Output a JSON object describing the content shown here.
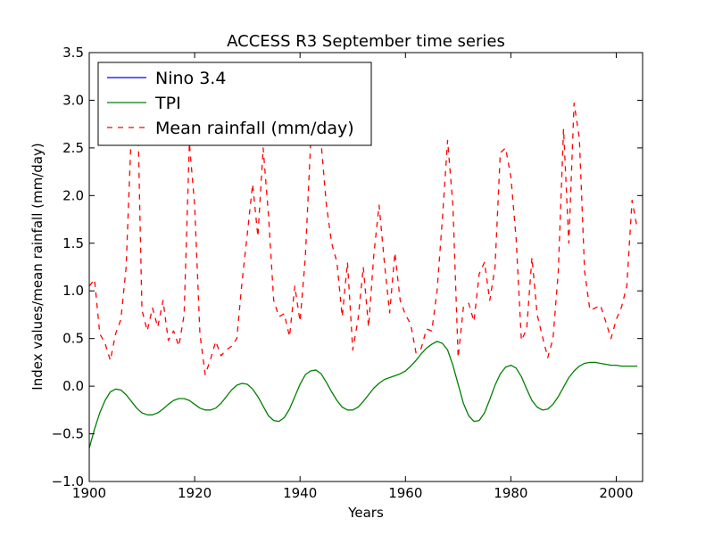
{
  "chart_data": {
    "type": "line",
    "title": "ACCESS R3 September time series",
    "xlabel": "Years",
    "ylabel": "Index values/mean rainfall (mm/day)",
    "xlim": [
      1900,
      2005
    ],
    "ylim": [
      -1.0,
      3.5
    ],
    "xticks": [
      1900,
      1920,
      1940,
      1960,
      1980,
      2000
    ],
    "xtick_labels": [
      "1900",
      "1920",
      "1940",
      "1960",
      "1980",
      "2000"
    ],
    "yticks": [
      -1.0,
      -0.5,
      0.0,
      0.5,
      1.0,
      1.5,
      2.0,
      2.5,
      3.0,
      3.5
    ],
    "ytick_labels": [
      "−1.0",
      "−0.5",
      "0.0",
      "0.5",
      "1.0",
      "1.5",
      "2.0",
      "2.5",
      "3.0",
      "3.5"
    ],
    "grid": false,
    "legend_position": "top-left",
    "series": [
      {
        "name": "Nino 3.4",
        "color": "#0000ff",
        "style": "solid",
        "x": [],
        "y": []
      },
      {
        "name": "TPI",
        "color": "#008000",
        "style": "solid",
        "x": [
          1900,
          1901,
          1902,
          1903,
          1904,
          1905,
          1906,
          1907,
          1908,
          1909,
          1910,
          1911,
          1912,
          1913,
          1914,
          1915,
          1916,
          1917,
          1918,
          1919,
          1920,
          1921,
          1922,
          1923,
          1924,
          1925,
          1926,
          1927,
          1928,
          1929,
          1930,
          1931,
          1932,
          1933,
          1934,
          1935,
          1936,
          1937,
          1938,
          1939,
          1940,
          1941,
          1942,
          1943,
          1944,
          1945,
          1946,
          1947,
          1948,
          1949,
          1950,
          1951,
          1952,
          1953,
          1954,
          1955,
          1956,
          1957,
          1958,
          1959,
          1960,
          1961,
          1962,
          1963,
          1964,
          1965,
          1966,
          1967,
          1968,
          1969,
          1970,
          1971,
          1972,
          1973,
          1974,
          1975,
          1976,
          1977,
          1978,
          1979,
          1980,
          1981,
          1982,
          1983,
          1984,
          1985,
          1986,
          1987,
          1988,
          1989,
          1990,
          1991,
          1992,
          1993,
          1994,
          1995,
          1996,
          1997,
          1998,
          1999,
          2000,
          2001,
          2002,
          2003,
          2004
        ],
        "y": [
          -0.65,
          -0.45,
          -0.28,
          -0.15,
          -0.06,
          -0.03,
          -0.04,
          -0.09,
          -0.16,
          -0.23,
          -0.28,
          -0.3,
          -0.3,
          -0.28,
          -0.24,
          -0.19,
          -0.15,
          -0.13,
          -0.13,
          -0.15,
          -0.19,
          -0.23,
          -0.25,
          -0.25,
          -0.23,
          -0.18,
          -0.11,
          -0.04,
          0.01,
          0.03,
          0.02,
          -0.03,
          -0.11,
          -0.21,
          -0.31,
          -0.36,
          -0.37,
          -0.33,
          -0.24,
          -0.11,
          0.02,
          0.12,
          0.16,
          0.17,
          0.13,
          0.04,
          -0.06,
          -0.15,
          -0.22,
          -0.25,
          -0.25,
          -0.22,
          -0.16,
          -0.09,
          -0.02,
          0.03,
          0.07,
          0.09,
          0.11,
          0.13,
          0.16,
          0.21,
          0.27,
          0.34,
          0.4,
          0.44,
          0.47,
          0.45,
          0.38,
          0.22,
          0.02,
          -0.18,
          -0.31,
          -0.37,
          -0.36,
          -0.28,
          -0.14,
          0.01,
          0.13,
          0.2,
          0.22,
          0.19,
          0.1,
          -0.03,
          -0.15,
          -0.22,
          -0.25,
          -0.24,
          -0.19,
          -0.11,
          -0.01,
          0.09,
          0.16,
          0.21,
          0.24,
          0.25,
          0.25,
          0.24,
          0.23,
          0.22,
          0.22,
          0.21,
          0.21,
          0.21,
          0.21
        ]
      },
      {
        "name": "Mean rainfall (mm/day)",
        "color": "#ff0000",
        "style": "dashed",
        "x": [
          1900,
          1901,
          1902,
          1903,
          1904,
          1905,
          1906,
          1907,
          1908,
          1909,
          1910,
          1911,
          1912,
          1913,
          1914,
          1915,
          1916,
          1917,
          1918,
          1919,
          1920,
          1921,
          1922,
          1923,
          1924,
          1925,
          1926,
          1927,
          1928,
          1929,
          1930,
          1931,
          1932,
          1933,
          1934,
          1935,
          1936,
          1937,
          1938,
          1939,
          1940,
          1941,
          1942,
          1943,
          1944,
          1945,
          1946,
          1947,
          1948,
          1949,
          1950,
          1951,
          1952,
          1953,
          1954,
          1955,
          1956,
          1957,
          1958,
          1959,
          1960,
          1961,
          1962,
          1963,
          1964,
          1965,
          1966,
          1967,
          1968,
          1969,
          1970,
          1971,
          1972,
          1973,
          1974,
          1975,
          1976,
          1977,
          1978,
          1979,
          1980,
          1981,
          1982,
          1983,
          1984,
          1985,
          1986,
          1987,
          1988,
          1989,
          1990,
          1991,
          1992,
          1993,
          1994,
          1995,
          1996,
          1997,
          1998,
          1999,
          2000,
          2001,
          2002,
          2003,
          2004
        ],
        "y": [
          1.05,
          1.12,
          0.55,
          0.45,
          0.27,
          0.55,
          0.7,
          1.25,
          2.7,
          3.4,
          0.8,
          0.58,
          0.82,
          0.62,
          0.9,
          0.48,
          0.58,
          0.42,
          0.75,
          2.55,
          1.9,
          0.55,
          0.12,
          0.28,
          0.47,
          0.32,
          0.38,
          0.42,
          0.5,
          1.1,
          1.6,
          2.12,
          1.57,
          2.5,
          1.8,
          0.9,
          0.73,
          0.76,
          0.52,
          1.05,
          0.68,
          1.35,
          2.55,
          2.65,
          2.55,
          1.9,
          1.5,
          1.3,
          0.73,
          1.3,
          0.38,
          0.7,
          1.25,
          0.62,
          1.38,
          1.9,
          1.3,
          0.77,
          1.4,
          0.9,
          0.75,
          0.65,
          0.35,
          0.4,
          0.6,
          0.58,
          1.0,
          1.75,
          2.58,
          1.9,
          0.3,
          0.83,
          0.87,
          0.68,
          1.18,
          1.3,
          0.9,
          1.25,
          2.45,
          2.5,
          2.2,
          1.55,
          0.48,
          0.6,
          1.35,
          0.75,
          0.52,
          0.3,
          0.5,
          1.2,
          2.7,
          1.5,
          2.97,
          2.6,
          1.2,
          0.8,
          0.82,
          0.85,
          0.68,
          0.5,
          0.7,
          0.83,
          1.05,
          1.95,
          1.65
        ]
      }
    ]
  }
}
